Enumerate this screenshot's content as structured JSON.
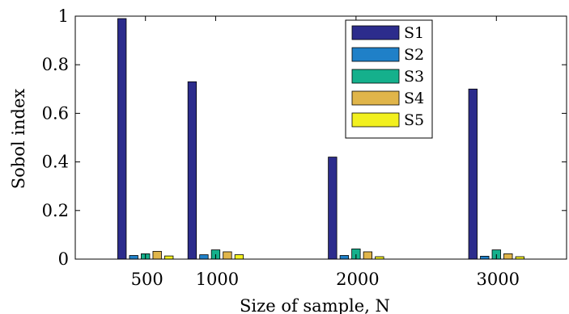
{
  "chart_data": {
    "type": "bar",
    "title": "",
    "xlabel": "Size of sample, N",
    "ylabel": "Sobol index",
    "x": [
      500,
      1000,
      2000,
      3000
    ],
    "xlim": [
      0,
      3500
    ],
    "ylim": [
      0,
      1
    ],
    "yticks": [
      "0",
      "0.2",
      "0.4",
      "0.6",
      "0.8",
      "1"
    ],
    "xticks": [
      "500",
      "1000",
      "2000",
      "3000"
    ],
    "grid": false,
    "legend_position": "top-center",
    "series": [
      {
        "name": "S1",
        "color": "#2c2c8c",
        "values": [
          0.99,
          0.73,
          0.42,
          0.7
        ]
      },
      {
        "name": "S2",
        "color": "#1f80c8",
        "values": [
          0.015,
          0.018,
          0.015,
          0.012
        ]
      },
      {
        "name": "S3",
        "color": "#15b08c",
        "values": [
          0.022,
          0.038,
          0.042,
          0.038
        ]
      },
      {
        "name": "S4",
        "color": "#e0b54a",
        "values": [
          0.032,
          0.03,
          0.03,
          0.022
        ]
      },
      {
        "name": "S5",
        "color": "#f2f01e",
        "values": [
          0.013,
          0.018,
          0.01,
          0.01
        ]
      }
    ]
  }
}
